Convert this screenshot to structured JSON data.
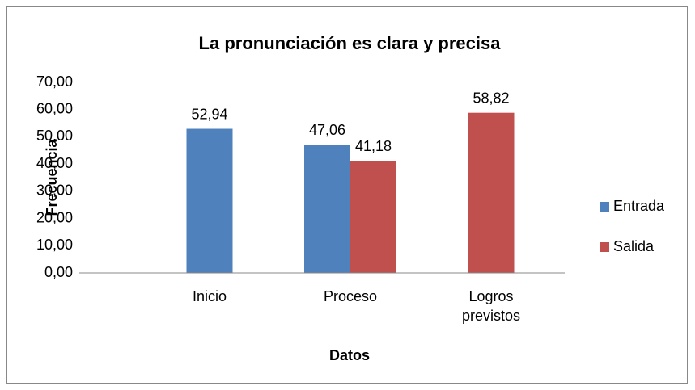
{
  "chart_data": {
    "type": "bar",
    "title": "La pronunciación es clara y precisa",
    "x_label": "Datos",
    "y_label": "Frecuencia",
    "categories": [
      "Inicio",
      "Proceso",
      "Logros previstos"
    ],
    "series": [
      {
        "name": "Entrada",
        "color": "#4f81bd",
        "values": [
          52.94,
          47.06,
          null
        ],
        "value_labels": [
          "52,94",
          "47,06",
          null
        ]
      },
      {
        "name": "Salida",
        "color": "#c0504d",
        "values": [
          null,
          41.18,
          58.82
        ],
        "value_labels": [
          null,
          "41,18",
          "58,82"
        ]
      }
    ],
    "ylim": [
      0,
      70
    ],
    "yticks": [
      {
        "value": 0,
        "label": "0,00"
      },
      {
        "value": 10,
        "label": "10,00"
      },
      {
        "value": 20,
        "label": "20,00"
      },
      {
        "value": 30,
        "label": "30,00"
      },
      {
        "value": 40,
        "label": "40,00"
      },
      {
        "value": 50,
        "label": "50,00"
      },
      {
        "value": 60,
        "label": "60,00"
      },
      {
        "value": 70,
        "label": "70,00"
      }
    ],
    "legend": "right",
    "grid": false
  }
}
